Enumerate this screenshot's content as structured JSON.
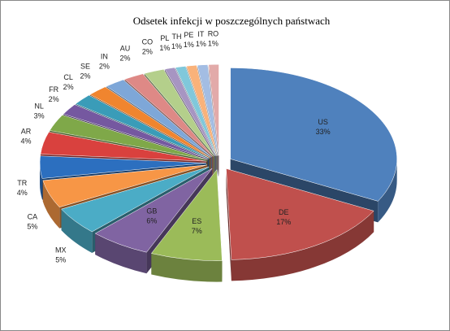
{
  "chart_data": {
    "type": "pie3d",
    "title": "Odsetek infekcji w poszczególnych państwach",
    "categories": [
      "US",
      "DE",
      "ES",
      "GB",
      "MX",
      "CA",
      "TR",
      "AR",
      "NL",
      "FR",
      "CL",
      "SE",
      "IN",
      "AU",
      "CO",
      "PL",
      "TH",
      "PE",
      "IT",
      "RO"
    ],
    "values": [
      33,
      17,
      7,
      6,
      5,
      5,
      4,
      4,
      3,
      2,
      2,
      2,
      2,
      2,
      2,
      1,
      1,
      1,
      1,
      1
    ],
    "value_labels": [
      "33%",
      "17%",
      "7%",
      "6%",
      "5%",
      "5%",
      "4%",
      "4%",
      "3%",
      "2%",
      "2%",
      "2%",
      "2%",
      "2%",
      "2%",
      "1%",
      "1%",
      "1%",
      "1%",
      "1%"
    ],
    "colors": [
      "#4f81bd",
      "#c0504d",
      "#9bbb59",
      "#8064a2",
      "#4bacc6",
      "#f79646",
      "#2c6fbf",
      "#d9413e",
      "#7fa849",
      "#7558a0",
      "#3a9cb8",
      "#f0852f",
      "#7ea7d8",
      "#de8986",
      "#b4cf8b",
      "#a795c2",
      "#80c8db",
      "#f9b27a",
      "#a3bde3",
      "#e2aaa9"
    ]
  }
}
